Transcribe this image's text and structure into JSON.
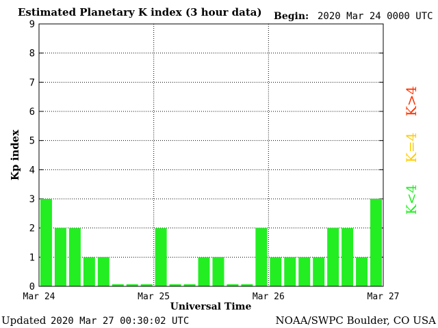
{
  "header": {
    "title": "Estimated Planetary K index (3 hour data)",
    "begin_label": "Begin:",
    "begin_value": "2020 Mar 24 0000 UTC"
  },
  "footer": {
    "updated_label": "Updated",
    "updated_value": "2020 Mar 27 00:30:02 UTC",
    "source": "NOAA/SWPC Boulder, CO USA"
  },
  "legend": {
    "high": {
      "label": "K>4",
      "color": "#ff3300"
    },
    "mid": {
      "label": "K=4",
      "color": "#ffcc00"
    },
    "low": {
      "label": "K<4",
      "color": "#22ee22"
    }
  },
  "chart_data": {
    "type": "bar",
    "title": "Estimated Planetary K index (3 hour data)",
    "xlabel": "Universal Time",
    "ylabel": "Kp index",
    "ylim": [
      0,
      9
    ],
    "yticks": [
      0,
      1,
      2,
      3,
      4,
      5,
      6,
      7,
      8,
      9
    ],
    "x_tick_labels": [
      "Mar 24",
      "Mar 25",
      "Mar 26",
      "Mar 27"
    ],
    "grid": true,
    "bar_color": "#22ee22",
    "series": [
      {
        "values": [
          3,
          2,
          2,
          1,
          1,
          0.07,
          0.07,
          0.07,
          2,
          0.07,
          0.07,
          1,
          1,
          0.07,
          0.07,
          2,
          1,
          1,
          1,
          1,
          2,
          2,
          1,
          3
        ]
      }
    ]
  }
}
